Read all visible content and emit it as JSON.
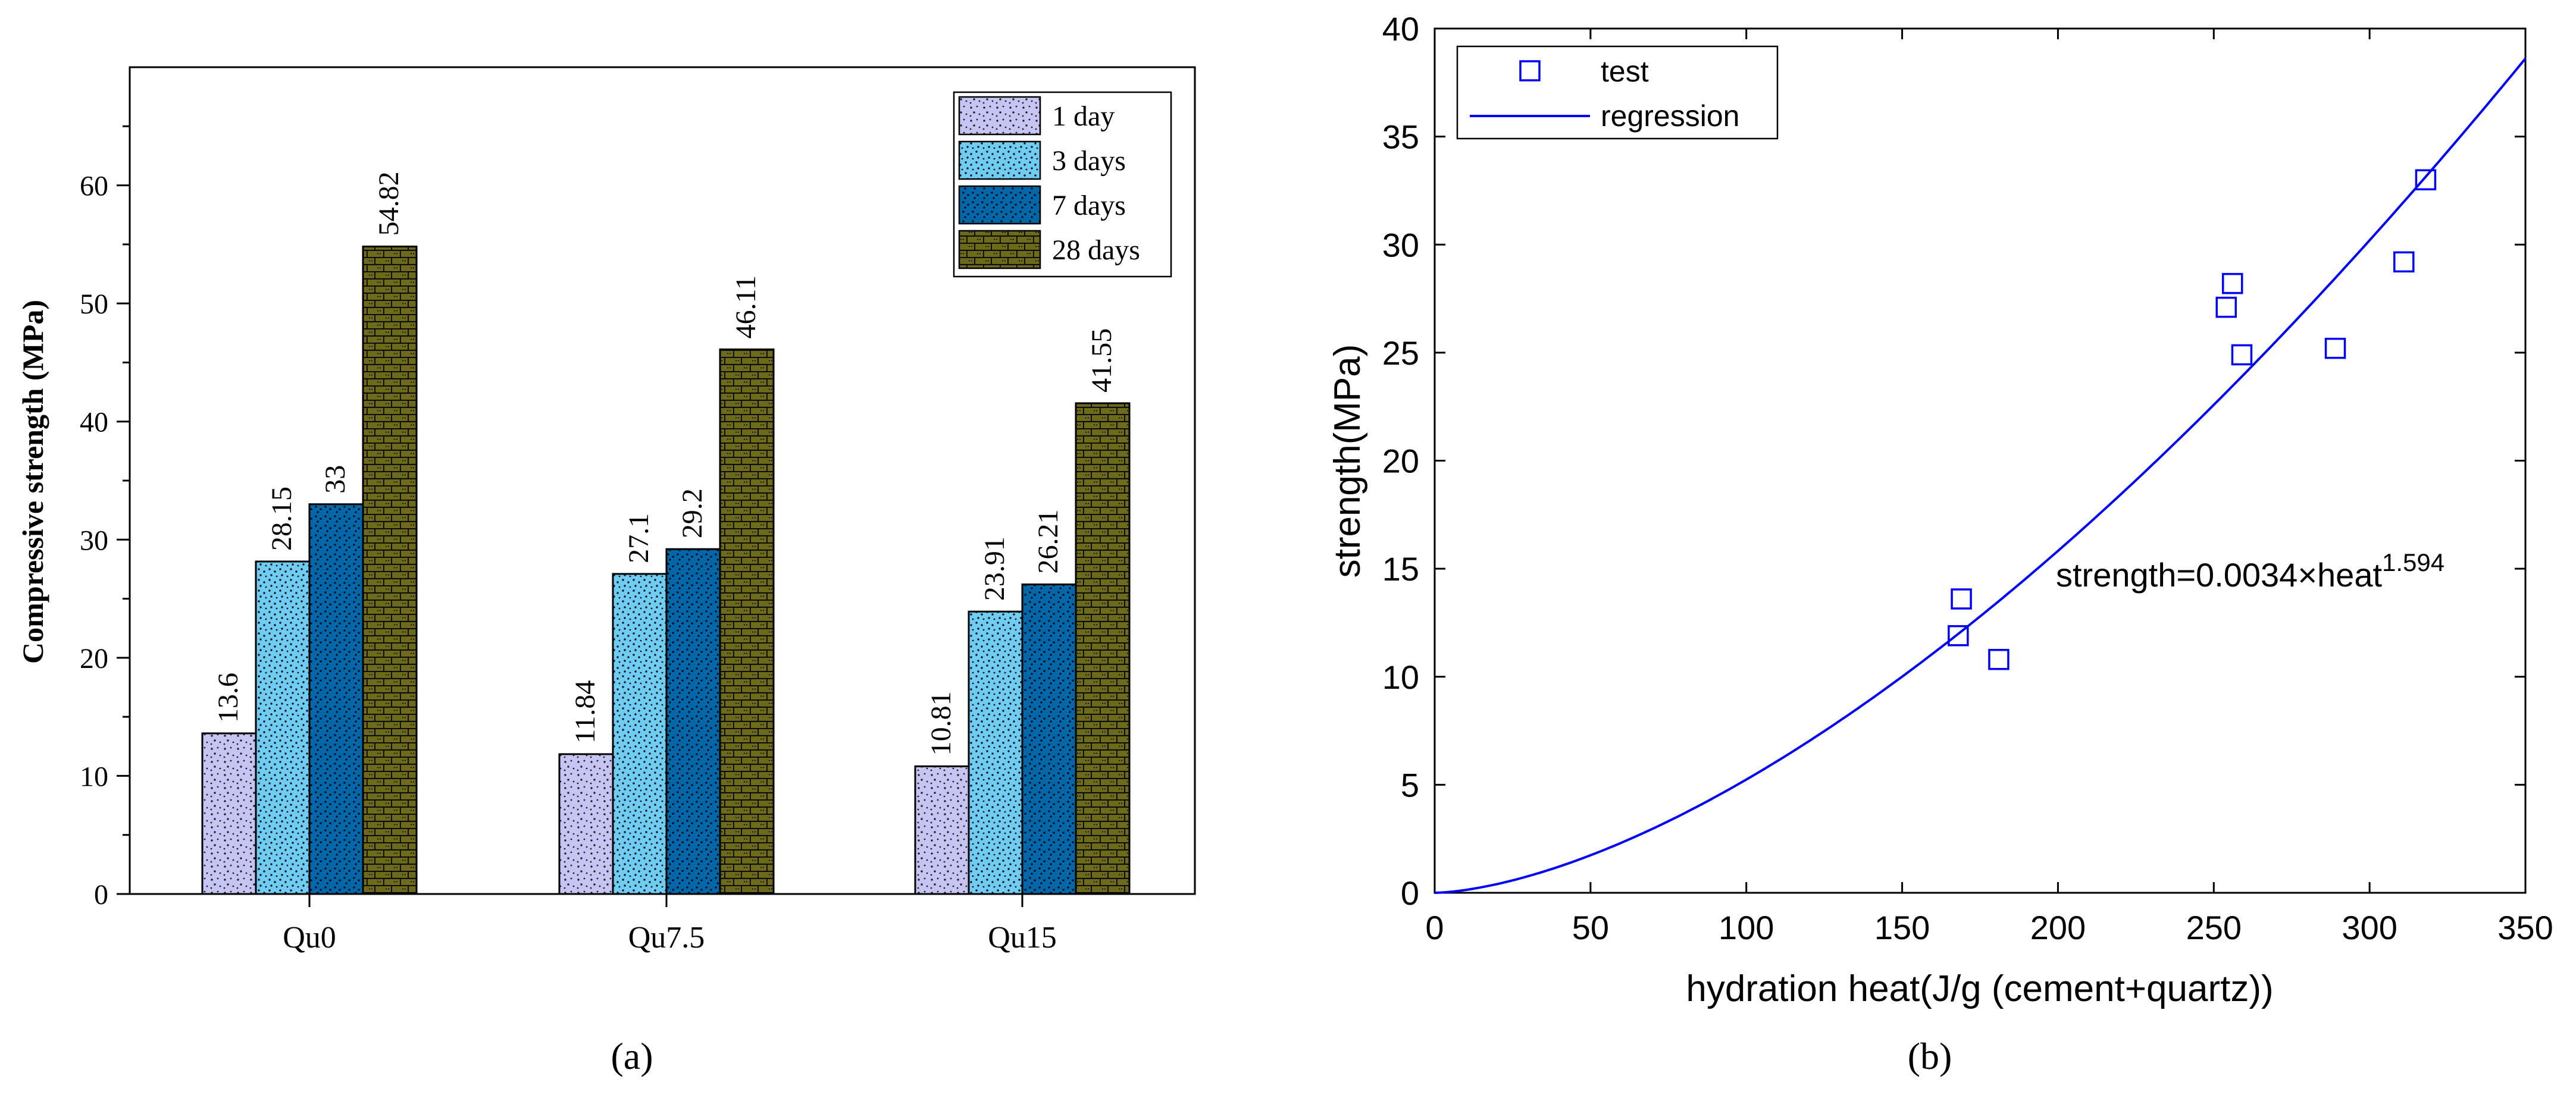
{
  "colors": {
    "day1": "#c6c4f2",
    "day3": "#6fcdf3",
    "day7": "#0068a8",
    "day28": "#6d6a1c",
    "regression": "#0000ff",
    "test": "#0000ff"
  },
  "panel_a": {
    "caption": "(a)",
    "ylabel": "Compressive strength (MPa)",
    "yticks": [
      "0",
      "10",
      "20",
      "30",
      "40",
      "50",
      "60"
    ],
    "legend": [
      "1 day",
      "3 days",
      "7 days",
      "28 days"
    ],
    "categories": [
      "Qu0",
      "Qu7.5",
      "Qu15"
    ]
  },
  "panel_b": {
    "caption": "(b)",
    "xlabel": "hydration heat(J/g (cement+quartz))",
    "ylabel": "strength(MPa)",
    "xticks": [
      "0",
      "50",
      "100",
      "150",
      "200",
      "250",
      "300",
      "350"
    ],
    "yticks": [
      "0",
      "5",
      "10",
      "15",
      "20",
      "25",
      "30",
      "35",
      "40"
    ],
    "legend_test": "test",
    "legend_regression": "regression",
    "equation_base": "strength=0.0034×heat",
    "equation_exp": "1.594"
  },
  "chart_data": [
    {
      "type": "bar",
      "title": "",
      "xlabel": "",
      "ylabel": "Compressive strength (MPa)",
      "ylim": [
        0,
        70
      ],
      "categories": [
        "Qu0",
        "Qu7.5",
        "Qu15"
      ],
      "series": [
        {
          "name": "1 day",
          "values": [
            13.6,
            11.84,
            10.81
          ],
          "labels": [
            "13.6",
            "11.84",
            "10.81"
          ]
        },
        {
          "name": "3 days",
          "values": [
            28.15,
            27.1,
            23.91
          ],
          "labels": [
            "28.15",
            "27.1",
            "23.91"
          ]
        },
        {
          "name": "7 days",
          "values": [
            33,
            29.2,
            26.21
          ],
          "labels": [
            "33",
            "29.2",
            "26.21"
          ]
        },
        {
          "name": "28 days",
          "values": [
            54.82,
            46.11,
            41.55
          ],
          "labels": [
            "54.82",
            "46.11",
            "41.55"
          ]
        }
      ],
      "legend": "top-right"
    },
    {
      "type": "scatter",
      "title": "",
      "xlabel": "hydration heat(J/g (cement+quartz))",
      "ylabel": "strength(MPa)",
      "xlim": [
        0,
        350
      ],
      "ylim": [
        0,
        40
      ],
      "series": [
        {
          "name": "test",
          "x": [
            168,
            169,
            181,
            254,
            256,
            259,
            289,
            311,
            318
          ],
          "y": [
            11.9,
            13.6,
            10.8,
            27.1,
            28.2,
            24.9,
            25.2,
            29.2,
            33.0
          ]
        },
        {
          "name": "regression",
          "model": "strength=0.0034×heat^1.594",
          "coef": 0.0034,
          "exponent": 1.594
        }
      ],
      "legend": "top-left"
    }
  ]
}
